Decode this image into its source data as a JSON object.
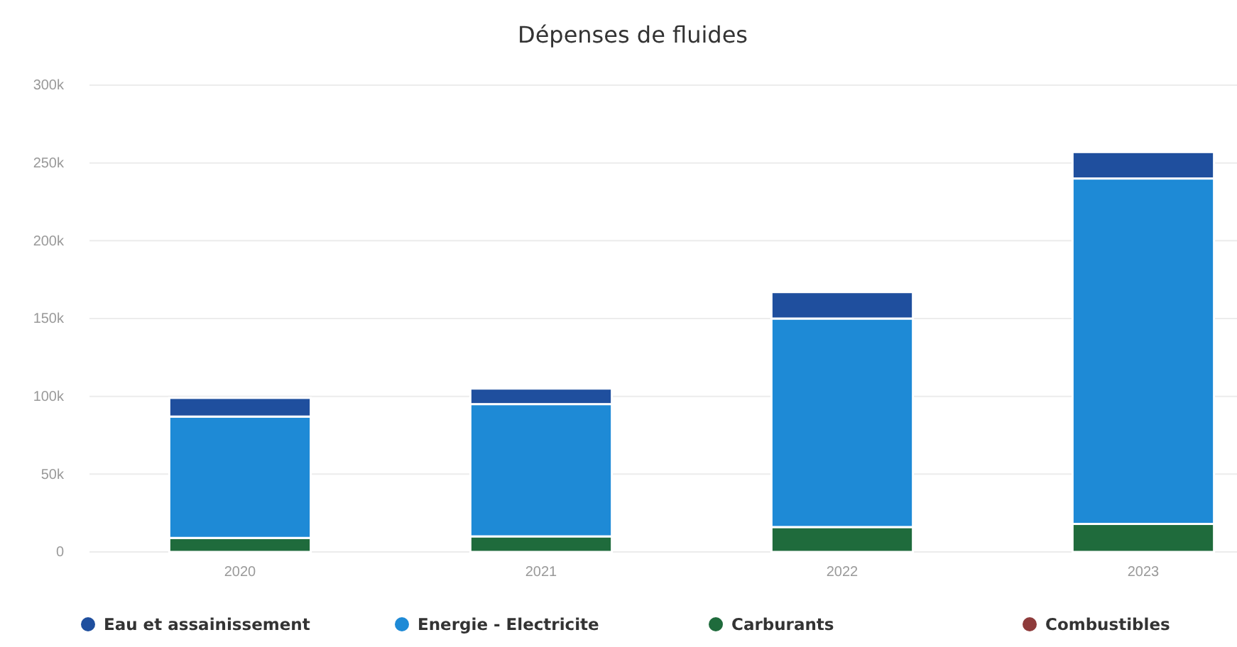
{
  "chart_data": {
    "type": "bar",
    "title": "Dépenses de fluides",
    "categories": [
      "2020",
      "2021",
      "2022",
      "2023"
    ],
    "stacked": true,
    "series": [
      {
        "name": "Combustibles",
        "color": "#8e3b3b",
        "values": [
          null,
          null,
          null,
          null
        ]
      },
      {
        "name": "Carburants",
        "color": "#1f6b3c",
        "values": [
          9000,
          10000,
          16000,
          18000
        ]
      },
      {
        "name": "Energie - Electricite",
        "color": "#1e8ad6",
        "values": [
          78000,
          85000,
          134000,
          222000
        ]
      },
      {
        "name": "Eau et assainissement",
        "color": "#1f4f9e",
        "values": [
          12000,
          10000,
          17000,
          17000
        ]
      }
    ],
    "ylim": [
      0,
      300000
    ],
    "yticks": [
      {
        "value": 0,
        "label": "0"
      },
      {
        "value": 50000,
        "label": "50k"
      },
      {
        "value": 100000,
        "label": "100k"
      },
      {
        "value": 150000,
        "label": "150k"
      },
      {
        "value": 200000,
        "label": "200k"
      },
      {
        "value": 250000,
        "label": "250k"
      },
      {
        "value": 300000,
        "label": "300k"
      }
    ],
    "grid": "y",
    "legend": "bottom"
  }
}
